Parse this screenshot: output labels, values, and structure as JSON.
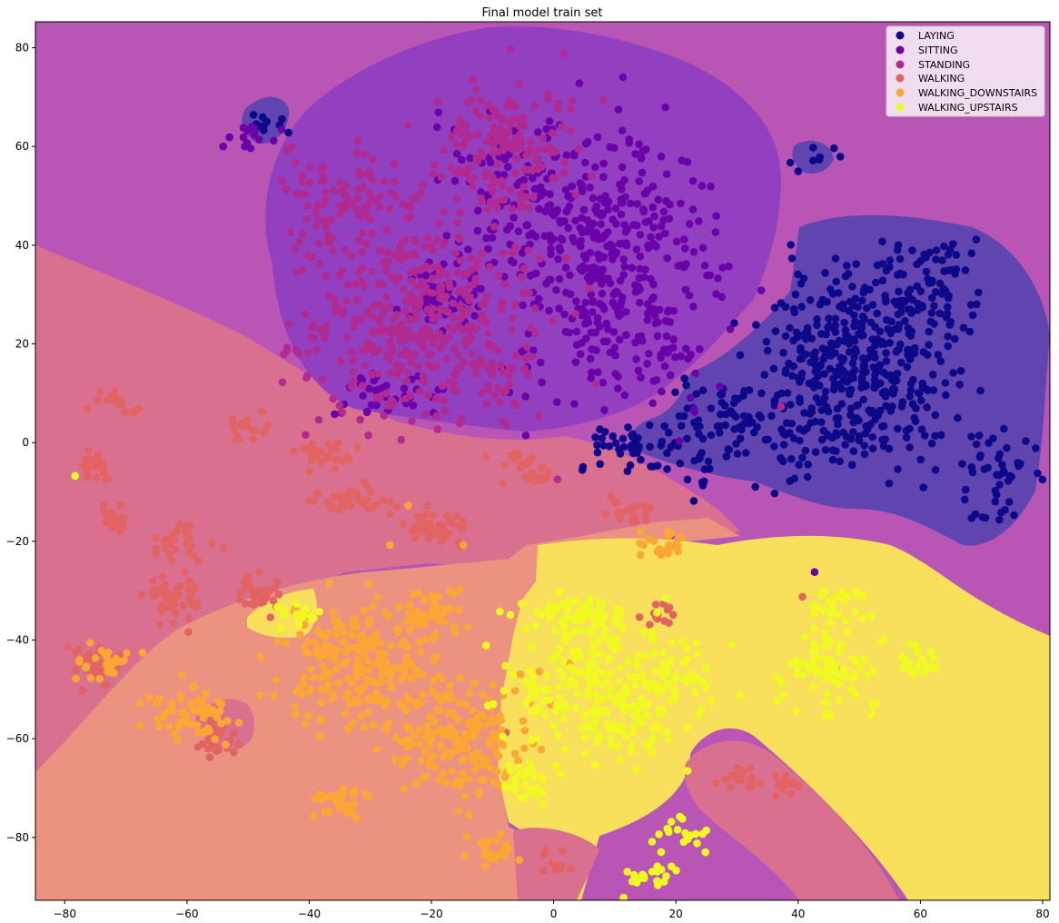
{
  "chart_data": {
    "type": "scatter",
    "title": "Final model train set",
    "xlabel": "",
    "ylabel": "",
    "xlim": [
      -85,
      81
    ],
    "ylim": [
      -93,
      85
    ],
    "xticks": [
      -80,
      -60,
      -40,
      -20,
      0,
      20,
      40,
      60,
      80
    ],
    "yticks": [
      80,
      60,
      40,
      20,
      0,
      -20,
      -40,
      -60,
      -80
    ],
    "xtick_labels": [
      "−80",
      "−60",
      "−40",
      "−20",
      "0",
      "20",
      "40",
      "60",
      "80"
    ],
    "ytick_labels": [
      "80",
      "60",
      "40",
      "20",
      "0",
      "−20",
      "−40",
      "−60",
      "−80"
    ],
    "legend_position": "top-right",
    "grid": false,
    "series": [
      {
        "name": "LAYING",
        "color": "#0d0887",
        "clusters": [
          [
            50,
            15,
            13,
            16,
            420
          ],
          [
            30,
            2,
            12,
            10,
            120
          ],
          [
            62,
            32,
            7,
            9,
            60
          ],
          [
            73,
            -8,
            6,
            9,
            45
          ],
          [
            -47,
            65,
            3,
            3,
            10
          ],
          [
            42,
            58,
            3,
            3,
            8
          ],
          [
            12,
            -1,
            7,
            4,
            35
          ]
        ],
        "points": [
          [
            19,
            -19
          ]
        ]
      },
      {
        "name": "SITTING",
        "color": "#6a00a8",
        "clusters": [
          [
            10,
            35,
            14,
            22,
            380
          ],
          [
            -5,
            50,
            12,
            14,
            120
          ],
          [
            -18,
            30,
            6,
            6,
            60
          ],
          [
            -28,
            10,
            8,
            4,
            35
          ],
          [
            -50,
            62,
            4,
            3,
            15
          ]
        ],
        "points": [
          [
            42.5,
            -26.5
          ],
          [
            46,
            -46
          ]
        ]
      },
      {
        "name": "STANDING",
        "color": "#b12a90",
        "clusters": [
          [
            -22,
            25,
            16,
            18,
            430
          ],
          [
            -8,
            60,
            10,
            12,
            160
          ],
          [
            -35,
            50,
            8,
            8,
            80
          ]
        ],
        "points": [
          [
            37,
            7
          ],
          [
            -4,
            23
          ]
        ]
      },
      {
        "name": "WALKING",
        "color": "#e16462",
        "clusters": [
          [
            -75,
            -5,
            2,
            3,
            25
          ],
          [
            -72,
            -15,
            2,
            3,
            25
          ],
          [
            -62,
            -32,
            4,
            4,
            50
          ],
          [
            -75,
            -45,
            4,
            4,
            35
          ],
          [
            -60,
            -20,
            4,
            3,
            30
          ],
          [
            -48,
            -30,
            3,
            4,
            30
          ],
          [
            -33,
            -12,
            5,
            3,
            40
          ],
          [
            -20,
            -18,
            5,
            3,
            45
          ],
          [
            -5,
            -6,
            4,
            3,
            25
          ],
          [
            -50,
            3,
            3,
            2,
            20
          ],
          [
            -38,
            -3,
            4,
            3,
            25
          ],
          [
            -72,
            8,
            3,
            2,
            20
          ],
          [
            -55,
            -60,
            3,
            3,
            25
          ],
          [
            12,
            -14,
            3,
            2,
            20
          ],
          [
            30,
            -68,
            3,
            2,
            20
          ],
          [
            38,
            -70,
            2,
            2,
            15
          ],
          [
            0,
            -85,
            2,
            2,
            10
          ],
          [
            17,
            -35,
            2,
            2,
            15
          ]
        ],
        "points": [
          [
            40.5,
            -31.5
          ],
          [
            -8,
            -59
          ]
        ]
      },
      {
        "name": "WALKING_DOWNSTAIRS",
        "color": "#fca636",
        "clusters": [
          [
            -32,
            -45,
            10,
            11,
            220
          ],
          [
            -15,
            -60,
            10,
            10,
            180
          ],
          [
            -60,
            -55,
            6,
            5,
            60
          ],
          [
            -74,
            -45,
            4,
            3,
            30
          ],
          [
            -35,
            -73,
            4,
            3,
            30
          ],
          [
            18,
            -21,
            3,
            2,
            20
          ],
          [
            -10,
            -83,
            4,
            3,
            25
          ],
          [
            -20,
            -35,
            4,
            4,
            40
          ]
        ],
        "points": [
          [
            -27,
            -21
          ],
          [
            -24,
            -13
          ],
          [
            -15,
            -21
          ],
          [
            2.5,
            -45
          ]
        ]
      },
      {
        "name": "WALKING_UPSTAIRS",
        "color": "#f0f921",
        "clusters": [
          [
            10,
            -50,
            14,
            12,
            260
          ],
          [
            5,
            -35,
            8,
            4,
            60
          ],
          [
            45,
            -45,
            7,
            8,
            80
          ],
          [
            60,
            -44,
            3,
            3,
            20
          ],
          [
            47,
            -33,
            4,
            3,
            20
          ],
          [
            -42,
            -35,
            3,
            2,
            15
          ],
          [
            15,
            -88,
            4,
            3,
            20
          ],
          [
            -5,
            -70,
            4,
            4,
            30
          ],
          [
            20,
            -80,
            4,
            3,
            20
          ]
        ],
        "points": [
          [
            -78.5,
            -7
          ],
          [
            -9,
            -34.5
          ]
        ]
      }
    ]
  }
}
